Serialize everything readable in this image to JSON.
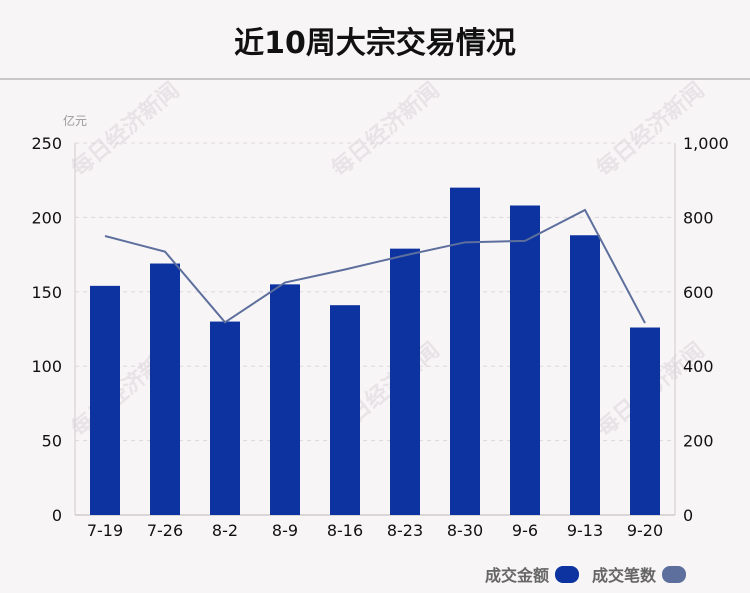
{
  "title": "近10周大宗交易情况",
  "watermark": "每日经济新闻",
  "chart_data": {
    "type": "bar",
    "title": "近10周大宗交易情况",
    "y_unit_label": "亿元",
    "categories": [
      "7-19",
      "7-26",
      "8-2",
      "8-9",
      "8-16",
      "8-23",
      "8-30",
      "9-6",
      "9-13",
      "9-20"
    ],
    "series": [
      {
        "name": "成交金额",
        "type": "bar",
        "axis": "left",
        "color": "#0c33a0",
        "values": [
          154,
          169,
          130,
          155,
          141,
          179,
          220,
          208,
          188,
          126
        ]
      },
      {
        "name": "成交笔数",
        "type": "line",
        "axis": "right",
        "color": "#5d6f9c",
        "values": [
          750,
          708,
          518,
          625,
          660,
          698,
          733,
          737,
          820,
          516
        ]
      }
    ],
    "y_left": {
      "lim": [
        0,
        250
      ],
      "ticks": [
        0,
        50,
        100,
        150,
        200,
        250
      ],
      "tick_labels": [
        "0",
        "50",
        "100",
        "150",
        "200",
        "250"
      ]
    },
    "y_right": {
      "lim": [
        0,
        1000
      ],
      "ticks": [
        0,
        200,
        400,
        600,
        800,
        1000
      ],
      "tick_labels": [
        "0",
        "200",
        "400",
        "600",
        "800",
        "1,000"
      ]
    },
    "grid": true,
    "legend": "bottom-right"
  }
}
